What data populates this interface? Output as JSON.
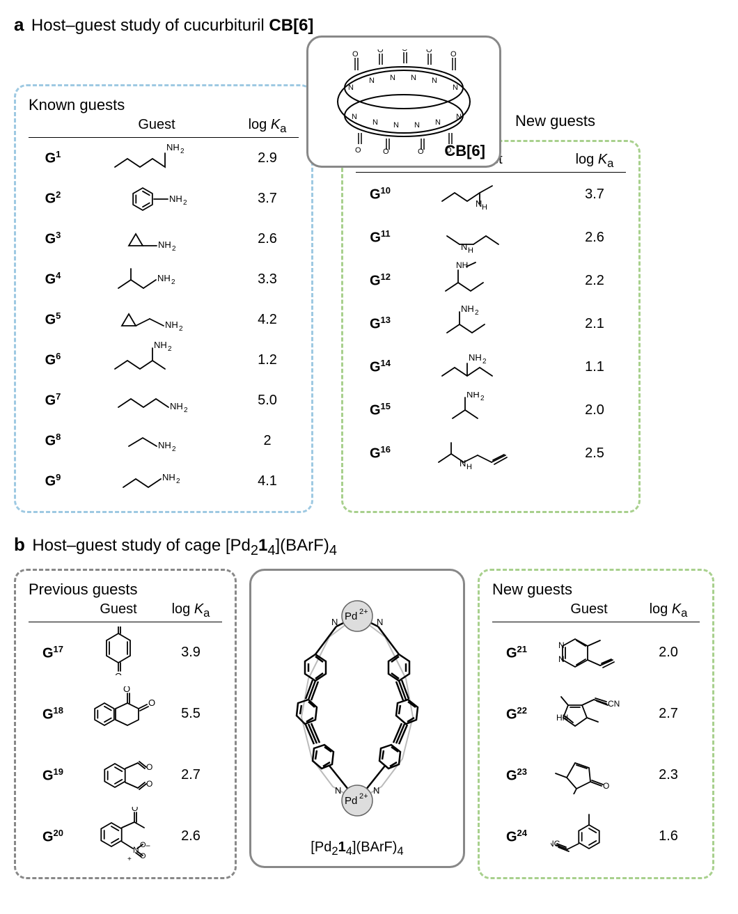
{
  "panelA": {
    "label": "a",
    "title_pre": "Host–guest study of cucurbituril ",
    "title_bold": "CB[6]",
    "known": {
      "title": "Known guests",
      "header_guest": "Guest",
      "header_logk_html": "log <i>K</i><sub>a</sub>",
      "border_color": "#9ec9e2",
      "rows": [
        {
          "id_html": "G<sup>1</sup>",
          "val": "2.9",
          "struct": "pentylamine"
        },
        {
          "id_html": "G<sup>2</sup>",
          "val": "3.7",
          "struct": "aniline"
        },
        {
          "id_html": "G<sup>3</sup>",
          "val": "2.6",
          "struct": "cyclopropylamine"
        },
        {
          "id_html": "G<sup>4</sup>",
          "val": "3.3",
          "struct": "isobutylamine"
        },
        {
          "id_html": "G<sup>5</sup>",
          "val": "4.2",
          "struct": "cyclopropylmethylamine"
        },
        {
          "id_html": "G<sup>6</sup>",
          "val": "1.2",
          "struct": "sec-pentylamine"
        },
        {
          "id_html": "G<sup>7</sup>",
          "val": "5.0",
          "struct": "butylamine"
        },
        {
          "id_html": "G<sup>8</sup>",
          "val": "2",
          "struct": "ethylamine"
        },
        {
          "id_html": "G<sup>9</sup>",
          "val": "4.1",
          "struct": "propylamine"
        }
      ]
    },
    "new": {
      "title": "New guests",
      "header_guest": "Guest",
      "header_logk_html": "log <i>K</i><sub>a</sub>",
      "border_color": "#a8d08d",
      "rows": [
        {
          "id_html": "G<sup>10</sup>",
          "val": "3.7",
          "struct": "n-propyl-methylamine"
        },
        {
          "id_html": "G<sup>11</sup>",
          "val": "2.6",
          "struct": "diethylamine"
        },
        {
          "id_html": "G<sup>12</sup>",
          "val": "2.2",
          "struct": "sec-butyl-methylamine"
        },
        {
          "id_html": "G<sup>13</sup>",
          "val": "2.1",
          "struct": "sec-butylamine"
        },
        {
          "id_html": "G<sup>14</sup>",
          "val": "1.1",
          "struct": "3-aminopentane"
        },
        {
          "id_html": "G<sup>15</sup>",
          "val": "2.0",
          "struct": "isopropylamine"
        },
        {
          "id_html": "G<sup>16</sup>",
          "val": "2.5",
          "struct": "propargyl-isopropylamine"
        }
      ]
    },
    "host_label": "CB[6]"
  },
  "panelB": {
    "label": "b",
    "title_html": "Host–guest study of cage [Pd<sub>2</sub><b>1</b><sub>4</sub>](BArF)<sub>4</sub>",
    "prev": {
      "title": "Previous guests",
      "header_guest": "Guest",
      "header_logk_html": "log <i>K</i><sub>a</sub>",
      "border_color": "#888888",
      "rows": [
        {
          "id_html": "G<sup>17</sup>",
          "val": "3.9",
          "struct": "benzoquinone"
        },
        {
          "id_html": "G<sup>18</sup>",
          "val": "5.5",
          "struct": "naphthoquinone"
        },
        {
          "id_html": "G<sup>19</sup>",
          "val": "2.7",
          "struct": "phthalaldehyde"
        },
        {
          "id_html": "G<sup>20</sup>",
          "val": "2.6",
          "struct": "nitroacetophenone"
        }
      ]
    },
    "new": {
      "title": "New guests",
      "header_guest": "Guest",
      "header_logk_html": "log <i>K</i><sub>a</sub>",
      "border_color": "#a8d08d",
      "rows": [
        {
          "id_html": "G<sup>21</sup>",
          "val": "2.0",
          "struct": "ethynyl-methylpyrazine"
        },
        {
          "id_html": "G<sup>22</sup>",
          "val": "2.7",
          "struct": "dimethyl-pyrrole-cn"
        },
        {
          "id_html": "G<sup>23</sup>",
          "val": "2.3",
          "struct": "dimethylcyclopentenone"
        },
        {
          "id_html": "G<sup>24</sup>",
          "val": "1.6",
          "struct": "m-tolunitrile"
        }
      ]
    },
    "host_label_html": "[Pd<sub>2</sub><b>1</b><sub>4</sub>](BArF)<sub>4</sub>"
  },
  "colors": {
    "bg": "#ffffff",
    "text": "#000000",
    "stroke": "#000000"
  }
}
